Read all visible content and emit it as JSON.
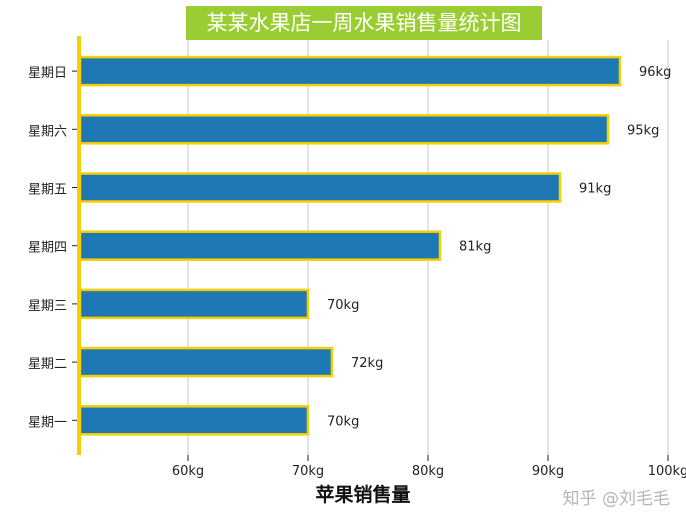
{
  "chart_data": {
    "type": "bar",
    "orientation": "horizontal",
    "title": "某某水果店一周水果销售量统计图",
    "xlabel": "苹果销售量",
    "ylabel": "",
    "categories": [
      "星期日",
      "星期六",
      "星期五",
      "星期四",
      "星期三",
      "星期二",
      "星期一"
    ],
    "values": [
      96,
      95,
      91,
      81,
      70,
      72,
      70
    ],
    "data_labels": [
      "96kg",
      "95kg",
      "91kg",
      "81kg",
      "70kg",
      "72kg",
      "70kg"
    ],
    "xlim": [
      51,
      100
    ],
    "xticks": [
      60,
      70,
      80,
      90,
      100
    ],
    "xtick_labels": [
      "60kg",
      "70kg",
      "80kg",
      "90kg",
      "100kg"
    ],
    "grid": "vertical",
    "bar_color": "#1f77b4",
    "bar_edge_color": "#f5d000",
    "axis_color": "#f5d000",
    "title_background": "#9acd32"
  },
  "watermark": "知乎 @刘毛毛"
}
